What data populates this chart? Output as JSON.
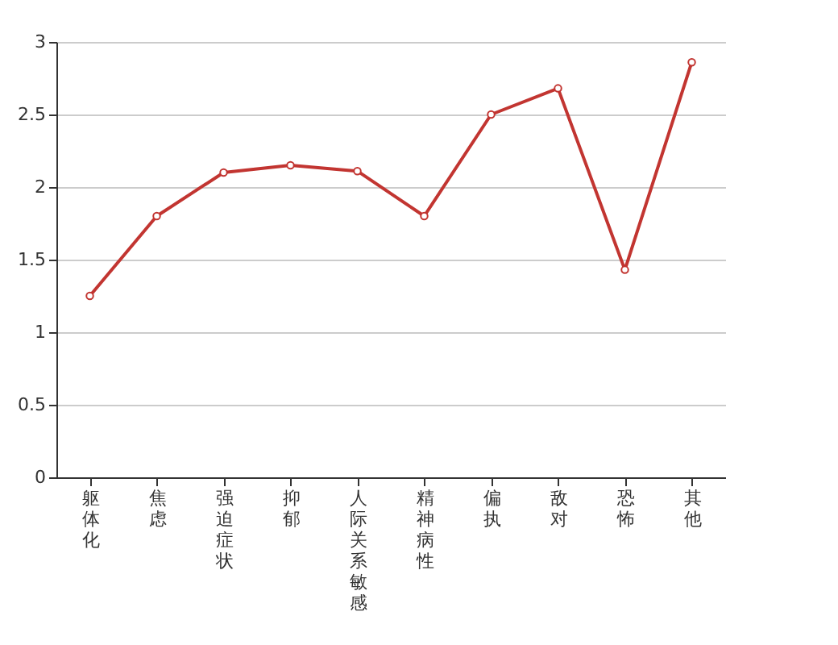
{
  "chart_data": {
    "type": "line",
    "categories": [
      "躯体化",
      "焦虑",
      "强迫症状",
      "抑郁",
      "人际关系敏感",
      "精神病性",
      "偏执",
      "敌对",
      "恐怖",
      "其他"
    ],
    "series": [
      {
        "color": "#c23531",
        "values": [
          1.25,
          1.8,
          2.1,
          2.15,
          2.11,
          1.8,
          2.5,
          2.68,
          1.43,
          2.86
        ]
      }
    ],
    "ylim": [
      0,
      3
    ],
    "yticks": [
      0,
      0.5,
      1,
      1.5,
      2,
      2.5,
      3
    ],
    "grid": "y",
    "marker": "circle",
    "line_style": "solid"
  }
}
